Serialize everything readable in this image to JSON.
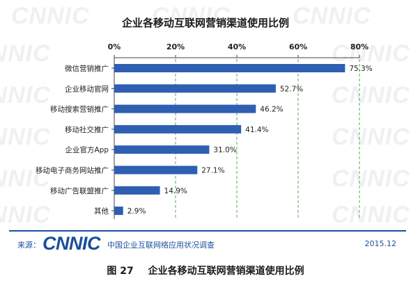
{
  "watermark_text": "CNNIC",
  "chart_data": {
    "type": "bar",
    "orientation": "horizontal",
    "title": "企业各移动互联网营销渠道使用比例",
    "categories": [
      "微信营销推广",
      "企业移动官网",
      "移动搜索营销推广",
      "移动社交推广",
      "企业官方App",
      "移动电子商务网站推广",
      "移动广告联盟推广",
      "其他"
    ],
    "values": [
      75.3,
      52.7,
      46.2,
      41.4,
      31.0,
      27.1,
      14.9,
      2.9
    ],
    "value_labels": [
      "75.3%",
      "52.7%",
      "46.2%",
      "41.4%",
      "31.0%",
      "27.1%",
      "14.9%",
      "2.9%"
    ],
    "xlim": [
      0,
      80
    ],
    "ticks": [
      0,
      20,
      40,
      60,
      80
    ],
    "tick_labels": [
      "0%",
      "20%",
      "40%",
      "60%",
      "80%"
    ],
    "axis_position": "top",
    "grid": "vertical-dashed",
    "bar_color": "#2e5fb0",
    "grid_color": "#5aa84a"
  },
  "source": {
    "label": "来源：",
    "logo": "CNNIC",
    "report": "中国企业互联网络应用状况调查",
    "date": "2015.12"
  },
  "caption": {
    "figure_no": "图 27",
    "text": "企业各移动互联网营销渠道使用比例"
  }
}
